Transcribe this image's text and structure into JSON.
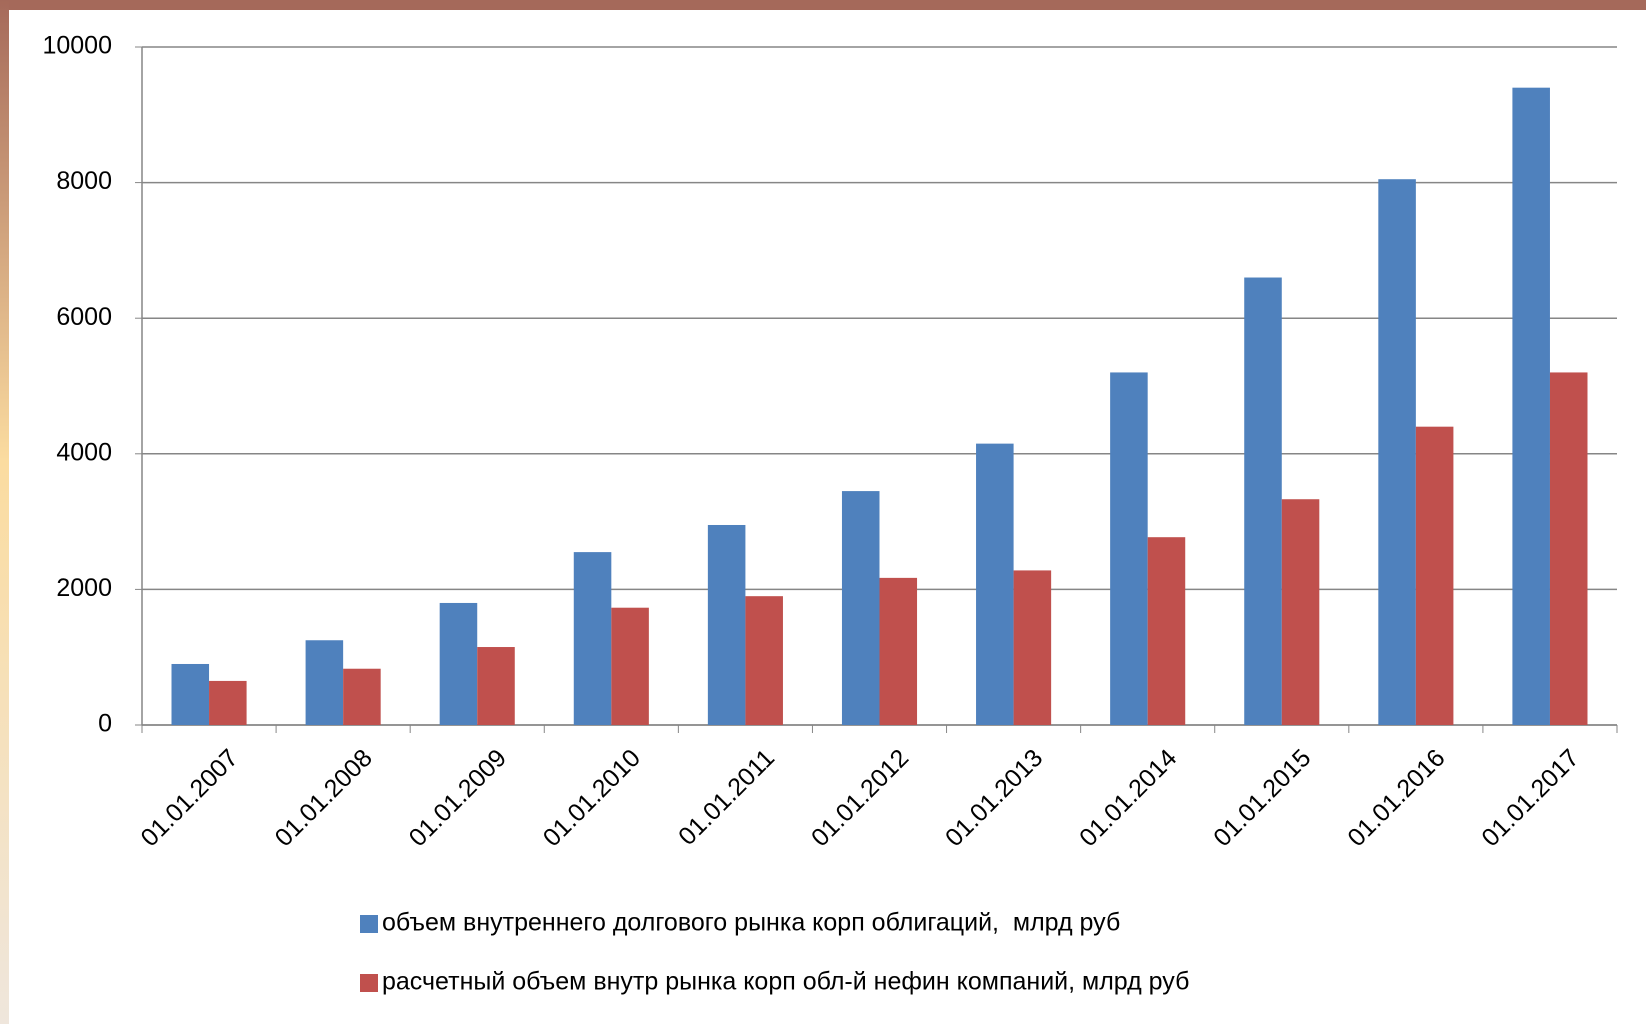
{
  "chart_data": {
    "type": "bar",
    "categories": [
      "01.01.2007",
      "01.01.2008",
      "01.01.2009",
      "01.01.2010",
      "01.01.2011",
      "01.01.2012",
      "01.01.2013",
      "01.01.2014",
      "01.01.2015",
      "01.01.2016",
      "01.01.2017"
    ],
    "series": [
      {
        "name": "объем внутреннего долгового рынка корп облигаций,  млрд руб",
        "color": "#4f81bd",
        "values": [
          900,
          1250,
          1800,
          2550,
          2950,
          3450,
          4150,
          5200,
          6600,
          8050,
          9400
        ]
      },
      {
        "name": "расчетный объем внутр рынка корп обл-й нефин компаний, млрд руб",
        "color": "#c0504d",
        "values": [
          650,
          830,
          1150,
          1730,
          1900,
          2170,
          2280,
          2770,
          3330,
          4400,
          5200
        ]
      }
    ],
    "ylim": [
      0,
      10000
    ],
    "yticks": [
      0,
      2000,
      4000,
      6000,
      8000,
      10000
    ],
    "grid": true,
    "legend": "bottom"
  }
}
